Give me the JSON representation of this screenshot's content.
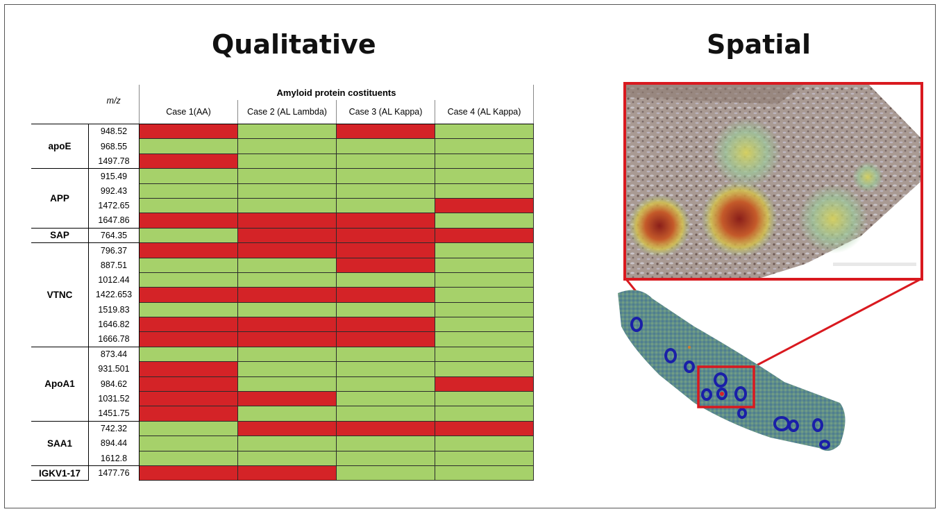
{
  "titles": {
    "qualitative": "Qualitative",
    "spatial": "Spatial"
  },
  "table": {
    "group_header": "Amyloid protein costituents",
    "mz_header": "m/z",
    "cases": [
      "Case 1(AA)",
      "Case 2 (AL Lambda)",
      "Case 3 (AL Kappa)",
      "Case 4 (AL Kappa)"
    ],
    "groups": [
      {
        "name": "apoE",
        "rows": [
          {
            "mz": "948.52",
            "cells": [
              1,
              0,
              1,
              0
            ]
          },
          {
            "mz": "968.55",
            "cells": [
              0,
              0,
              0,
              0
            ]
          },
          {
            "mz": "1497.78",
            "cells": [
              1,
              0,
              0,
              0
            ]
          }
        ]
      },
      {
        "name": "APP",
        "rows": [
          {
            "mz": "915.49",
            "cells": [
              0,
              0,
              0,
              0
            ]
          },
          {
            "mz": "992.43",
            "cells": [
              0,
              0,
              0,
              0
            ]
          },
          {
            "mz": "1472.65",
            "cells": [
              0,
              0,
              0,
              1
            ]
          },
          {
            "mz": "1647.86",
            "cells": [
              1,
              1,
              1,
              0
            ]
          }
        ]
      },
      {
        "name": "SAP",
        "rows": [
          {
            "mz": "764.35",
            "cells": [
              0,
              1,
              1,
              1
            ]
          }
        ]
      },
      {
        "name": "VTNC",
        "rows": [
          {
            "mz": "796.37",
            "cells": [
              1,
              1,
              1,
              0
            ]
          },
          {
            "mz": "887.51",
            "cells": [
              0,
              0,
              1,
              0
            ]
          },
          {
            "mz": "1012.44",
            "cells": [
              0,
              0,
              0,
              0
            ]
          },
          {
            "mz": "1422.653",
            "cells": [
              1,
              1,
              1,
              0
            ]
          },
          {
            "mz": "1519.83",
            "cells": [
              0,
              0,
              0,
              0
            ]
          },
          {
            "mz": "1646.82",
            "cells": [
              1,
              1,
              1,
              0
            ]
          },
          {
            "mz": "1666.78",
            "cells": [
              1,
              1,
              1,
              0
            ]
          }
        ]
      },
      {
        "name": "ApoA1",
        "rows": [
          {
            "mz": "873.44",
            "cells": [
              0,
              0,
              0,
              0
            ]
          },
          {
            "mz": "931.501",
            "cells": [
              1,
              0,
              0,
              0
            ]
          },
          {
            "mz": "984.62",
            "cells": [
              1,
              0,
              0,
              1
            ]
          },
          {
            "mz": "1031.52",
            "cells": [
              1,
              1,
              0,
              0
            ]
          },
          {
            "mz": "1451.75",
            "cells": [
              1,
              0,
              0,
              0
            ]
          }
        ]
      },
      {
        "name": "SAA1",
        "rows": [
          {
            "mz": "742.32",
            "cells": [
              0,
              1,
              1,
              1
            ]
          },
          {
            "mz": "894.44",
            "cells": [
              0,
              0,
              0,
              0
            ]
          },
          {
            "mz": "1612.8",
            "cells": [
              0,
              0,
              0,
              0
            ]
          }
        ]
      },
      {
        "name": "IGKV1-17",
        "rows": [
          {
            "mz": "1477.76",
            "cells": [
              1,
              1,
              0,
              0
            ]
          }
        ]
      }
    ]
  },
  "colors": {
    "present": "#d42327",
    "absent": "#a6d16a",
    "highlight_box": "#d9191f"
  }
}
